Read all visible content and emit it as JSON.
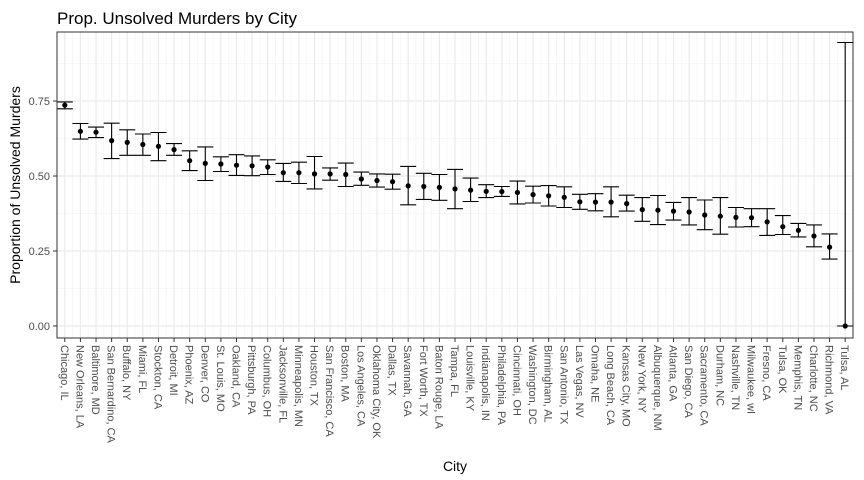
{
  "chart_data": {
    "type": "errorbar",
    "title": "Prop. Unsolved Murders by City",
    "xlabel": "City",
    "ylabel": "Proportion of Unsolved Murders",
    "ylim": [
      -0.04,
      0.98
    ],
    "yticks": [
      0.0,
      0.25,
      0.5,
      0.75
    ],
    "ytick_labels": [
      "0.00",
      "0.25",
      "0.50",
      "0.75"
    ],
    "grid": true,
    "legend": "none",
    "colors": {
      "point": "#000000",
      "errorbar": "#000000",
      "grid_major": "#ebebeb",
      "grid_minor": "#f5f5f5",
      "border": "#333333"
    },
    "categories": [
      "Chicago, IL",
      "New Orleans, LA",
      "Baltimore, MD",
      "San Bernardino, CA",
      "Buffalo, NY",
      "Miami, FL",
      "Stockton, CA",
      "Detroit, MI",
      "Phoenix, AZ",
      "Denver, CO",
      "St. Louis, MO",
      "Oakland, CA",
      "Pittsburgh, PA",
      "Columbus, OH",
      "Jacksonville, FL",
      "Minneapolis, MN",
      "Houston, TX",
      "San Francisco, CA",
      "Boston, MA",
      "Los Angeles, CA",
      "Oklahoma City, OK",
      "Dallas, TX",
      "Savannah, GA",
      "Fort Worth, TX",
      "Baton Rouge, LA",
      "Tampa, FL",
      "Louisville, KY",
      "Indianapolis, IN",
      "Philadelphia, PA",
      "Cincinnati, OH",
      "Washington, DC",
      "Birmingham, AL",
      "San Antonio, TX",
      "Las Vegas, NV",
      "Omaha, NE",
      "Long Beach, CA",
      "Kansas City, MO",
      "New York, NY",
      "Albuquerque, NM",
      "Atlanta, GA",
      "San Diego, CA",
      "Sacramento, CA",
      "Durham, NC",
      "Nashville, TN",
      "Milwaukee, wI",
      "Fresno, CA",
      "Tulsa, OK",
      "Memphis, TN",
      "Charlotte, NC",
      "Richmond, VA",
      "Tulsa, AL"
    ],
    "estimate": [
      0.736,
      0.649,
      0.646,
      0.618,
      0.612,
      0.605,
      0.599,
      0.588,
      0.551,
      0.542,
      0.54,
      0.536,
      0.534,
      0.53,
      0.511,
      0.511,
      0.507,
      0.507,
      0.505,
      0.49,
      0.485,
      0.481,
      0.467,
      0.465,
      0.462,
      0.457,
      0.453,
      0.449,
      0.448,
      0.445,
      0.438,
      0.434,
      0.429,
      0.414,
      0.413,
      0.413,
      0.408,
      0.388,
      0.386,
      0.383,
      0.38,
      0.37,
      0.366,
      0.362,
      0.361,
      0.347,
      0.331,
      0.319,
      0.3,
      0.263,
      0.0
    ],
    "conf_low": [
      0.724,
      0.623,
      0.628,
      0.558,
      0.569,
      0.569,
      0.551,
      0.569,
      0.518,
      0.485,
      0.515,
      0.502,
      0.501,
      0.505,
      0.482,
      0.475,
      0.457,
      0.486,
      0.465,
      0.469,
      0.463,
      0.456,
      0.404,
      0.422,
      0.419,
      0.391,
      0.415,
      0.428,
      0.432,
      0.407,
      0.41,
      0.4,
      0.395,
      0.389,
      0.384,
      0.364,
      0.383,
      0.349,
      0.338,
      0.353,
      0.337,
      0.321,
      0.306,
      0.33,
      0.331,
      0.302,
      0.305,
      0.297,
      0.264,
      0.223,
      0.0
    ],
    "conf_high": [
      0.747,
      0.675,
      0.663,
      0.676,
      0.654,
      0.64,
      0.645,
      0.608,
      0.584,
      0.597,
      0.564,
      0.571,
      0.567,
      0.554,
      0.542,
      0.546,
      0.565,
      0.527,
      0.543,
      0.513,
      0.507,
      0.506,
      0.532,
      0.509,
      0.505,
      0.522,
      0.493,
      0.471,
      0.465,
      0.483,
      0.466,
      0.468,
      0.464,
      0.439,
      0.441,
      0.464,
      0.436,
      0.428,
      0.435,
      0.412,
      0.428,
      0.42,
      0.428,
      0.395,
      0.391,
      0.391,
      0.368,
      0.342,
      0.337,
      0.307,
      0.945
    ]
  }
}
